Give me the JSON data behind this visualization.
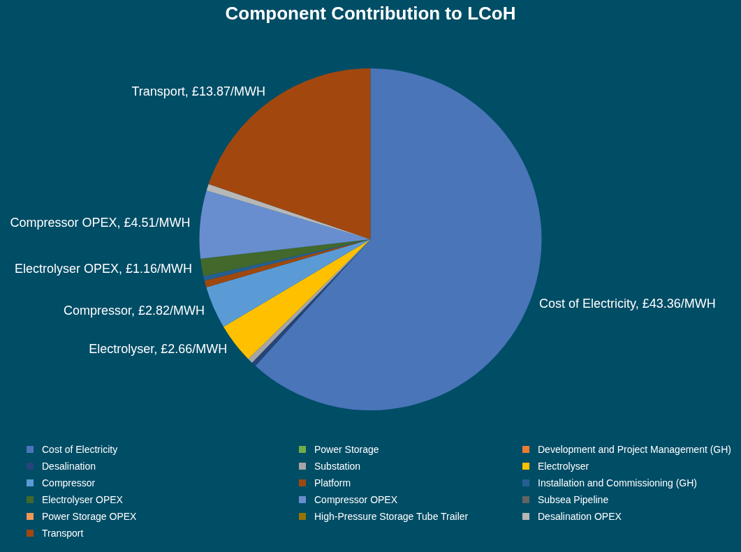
{
  "chart_data": {
    "type": "pie",
    "title": "Component Contribution to LCoH",
    "categories": [
      "Cost of Electricity",
      "Power Storage",
      "Development and Project Management (GH)",
      "Desalination",
      "Substation",
      "Electrolyser",
      "Compressor",
      "Platform",
      "Installation and Commissioning (GH)",
      "Electrolyser OPEX",
      "Compressor OPEX",
      "Subsea Pipeline",
      "Power Storage OPEX",
      "High-Pressure Storage Tube Trailer",
      "Desalination OPEX",
      "Transport"
    ],
    "values": [
      43.36,
      0,
      0,
      0.3,
      0.35,
      2.66,
      2.82,
      0.45,
      0.3,
      1.16,
      4.51,
      0,
      0,
      0,
      0.45,
      13.87
    ],
    "colors": [
      "#4a75b9",
      "#70ad47",
      "#ed7d31",
      "#264478",
      "#a5a5a5",
      "#ffc000",
      "#5b9bd5",
      "#9e480e",
      "#255e91",
      "#43682b",
      "#698ed0",
      "#636363",
      "#f1975a",
      "#997300",
      "#b7b7b7",
      "#a2480f"
    ],
    "value_labels": [
      "Cost of Electricity, £43.36/MWH",
      null,
      null,
      null,
      null,
      "Electrolyser, £2.66/MWH",
      "Compressor, £2.82/MWH",
      null,
      null,
      "Electrolyser OPEX, £1.16/MWH",
      "Compressor OPEX, £4.51/MWH",
      null,
      null,
      null,
      null,
      "Transport, £13.87/MWH"
    ],
    "legend": "bottom"
  }
}
